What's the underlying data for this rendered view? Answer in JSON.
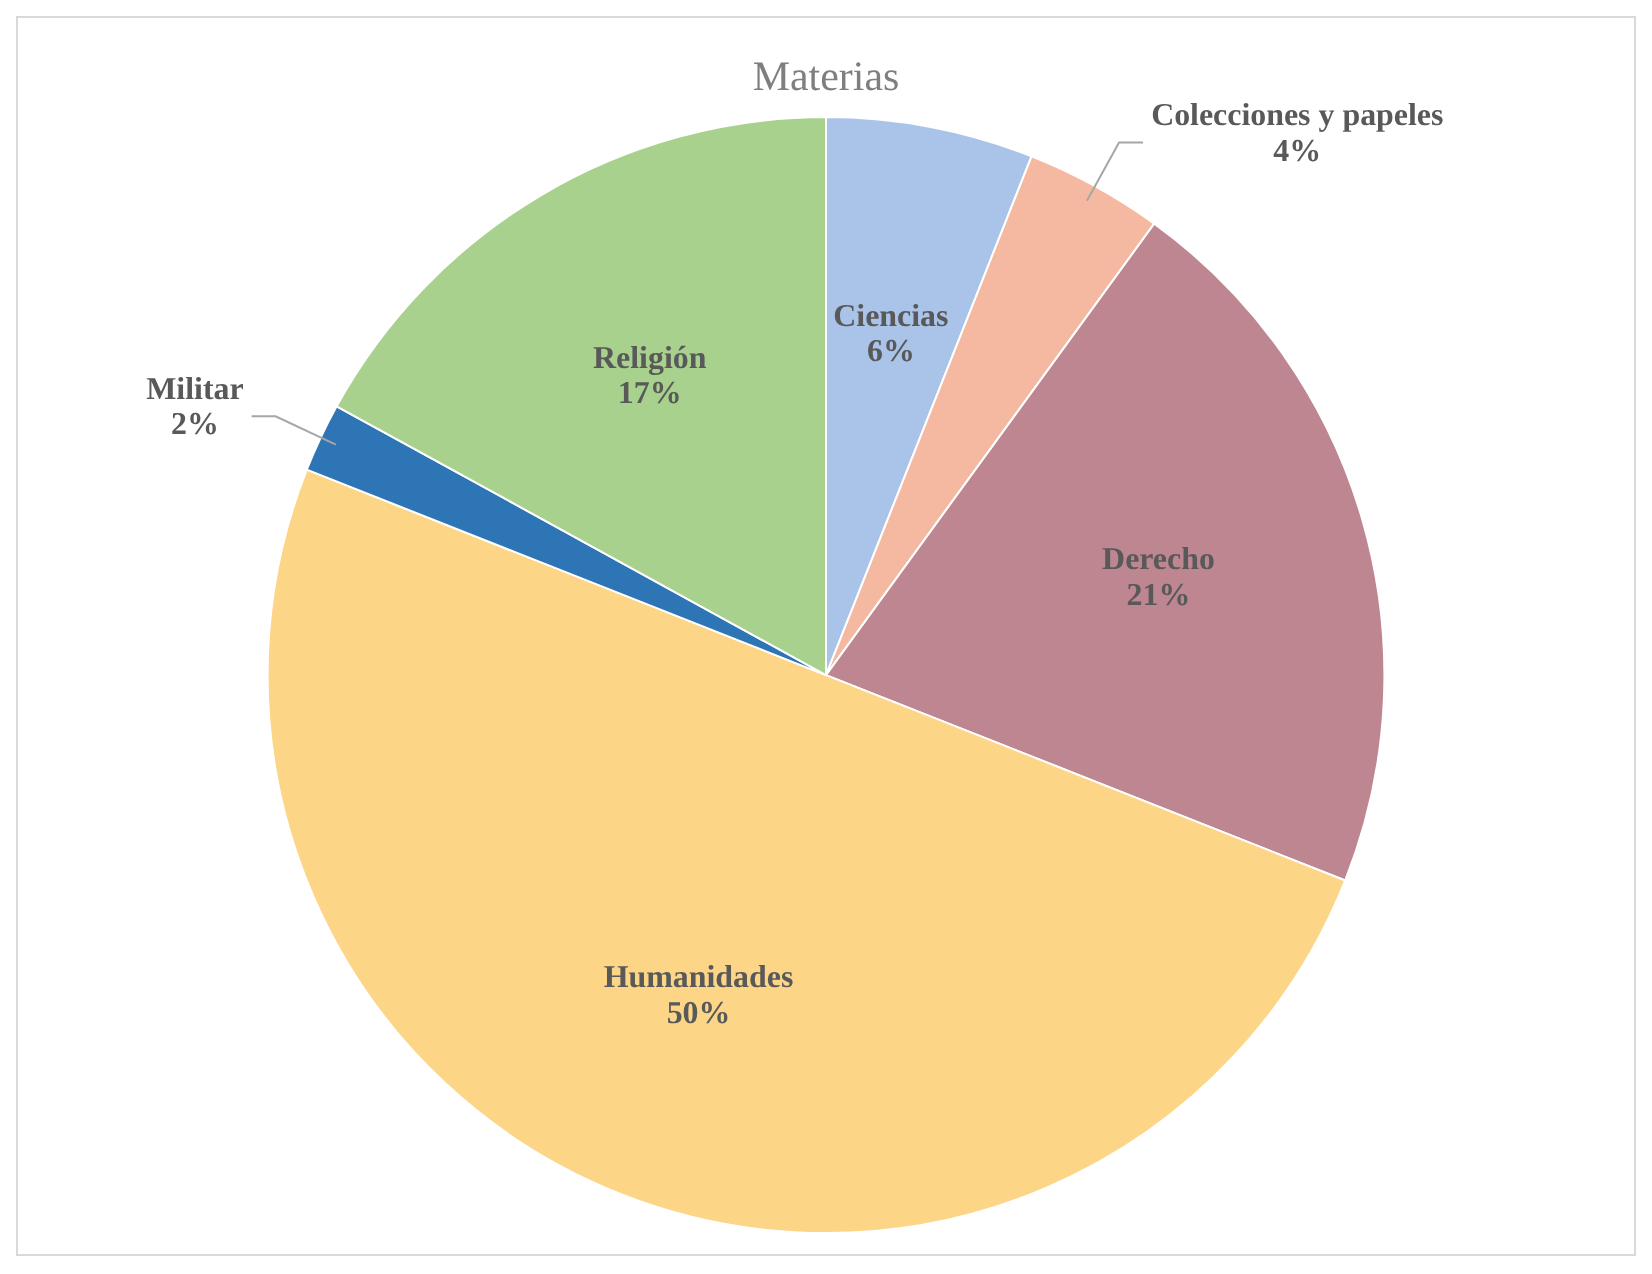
{
  "chart_data": {
    "type": "pie",
    "title": "Materias",
    "categories": [
      "Ciencias",
      "Colecciones y papeles",
      "Derecho",
      "Humanidades",
      "Militar",
      "Religión"
    ],
    "values": [
      6,
      4,
      21,
      50,
      2,
      17
    ],
    "value_labels": [
      "6%",
      "4%",
      "21%",
      "50%",
      "2%",
      "17%"
    ],
    "colors": [
      "#a9c4e8",
      "#f4b9a0",
      "#be8691",
      "#fdd587",
      "#2e75b6",
      "#a9d18e"
    ],
    "legend": false
  }
}
